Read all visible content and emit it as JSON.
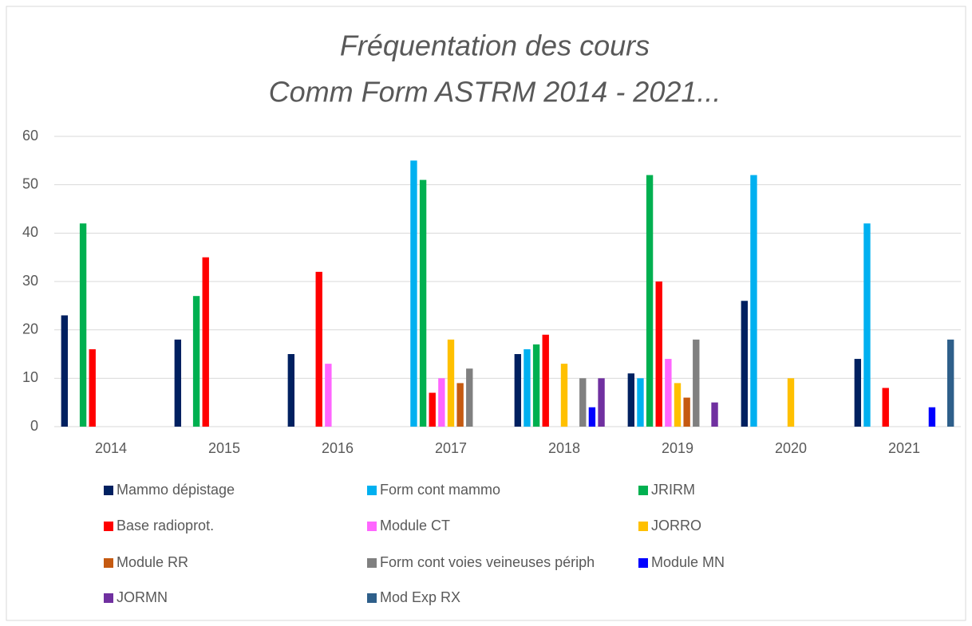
{
  "chart_data": {
    "type": "bar",
    "title": [
      "Fréquentation des cours",
      "Comm Form ASTRM 2014 - 2021..."
    ],
    "categories": [
      "2014",
      "2015",
      "2016",
      "2017",
      "2018",
      "2019",
      "2020",
      "2021"
    ],
    "series": [
      {
        "name": "Mammo dépistage",
        "color": "#002060",
        "values": [
          23,
          18,
          15,
          null,
          15,
          11,
          26,
          14
        ]
      },
      {
        "name": "Form cont mammo",
        "color": "#00b0f0",
        "values": [
          null,
          null,
          null,
          55,
          16,
          10,
          52,
          42
        ]
      },
      {
        "name": "JRIRM",
        "color": "#00b050",
        "values": [
          42,
          27,
          null,
          51,
          17,
          52,
          null,
          null
        ]
      },
      {
        "name": "Base radioprot.",
        "color": "#ff0000",
        "values": [
          16,
          35,
          32,
          7,
          19,
          30,
          null,
          8
        ]
      },
      {
        "name": "Module CT",
        "color": "#ff66ff",
        "values": [
          null,
          null,
          13,
          10,
          null,
          14,
          null,
          null
        ]
      },
      {
        "name": "JORRO",
        "color": "#ffc000",
        "values": [
          null,
          null,
          null,
          18,
          13,
          9,
          10,
          null
        ]
      },
      {
        "name": "Module RR",
        "color": "#c55a11",
        "values": [
          null,
          null,
          null,
          9,
          null,
          6,
          null,
          null
        ]
      },
      {
        "name": "Form cont voies veineuses périph",
        "color": "#808080",
        "values": [
          null,
          null,
          null,
          12,
          10,
          18,
          null,
          null
        ]
      },
      {
        "name": "Module MN",
        "color": "#0000ff",
        "values": [
          null,
          null,
          null,
          null,
          4,
          null,
          null,
          4
        ]
      },
      {
        "name": "JORMN",
        "color": "#7030a0",
        "values": [
          null,
          null,
          null,
          null,
          10,
          5,
          null,
          null
        ]
      },
      {
        "name": "Mod Exp RX",
        "color": "#2e5f8a",
        "values": [
          null,
          null,
          null,
          null,
          null,
          null,
          null,
          18
        ]
      }
    ],
    "ylim": [
      0,
      60
    ],
    "yticks": [
      0,
      10,
      20,
      30,
      40,
      50,
      60
    ],
    "grid": true,
    "legend": "bottom"
  }
}
